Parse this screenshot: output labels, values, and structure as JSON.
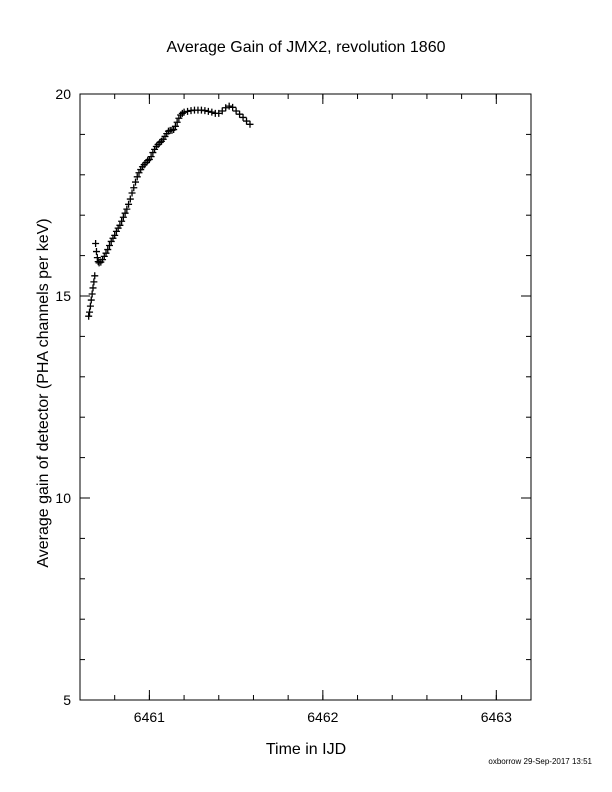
{
  "chart_data": {
    "type": "scatter",
    "title": "Average Gain of JMX2, revolution 1860",
    "xlabel": "Time in IJD",
    "ylabel": "Average gain of detector (PHA channels per keV)",
    "xlim": [
      6460.6,
      6463.2
    ],
    "ylim": [
      5,
      20
    ],
    "x_ticks": [
      6461,
      6462,
      6463
    ],
    "y_ticks": [
      5,
      10,
      15,
      20
    ],
    "x_tick_labels": [
      "6461",
      "6462",
      "6463"
    ],
    "y_tick_labels": [
      "5",
      "10",
      "15",
      "20"
    ],
    "x_minor_step": 0.2,
    "y_minor_step": 1,
    "marker": "+",
    "grid": false,
    "series": [
      {
        "color": "#000000",
        "points": [
          [
            6460.65,
            14.5
          ],
          [
            6460.655,
            14.6
          ],
          [
            6460.66,
            14.75
          ],
          [
            6460.665,
            14.9
          ],
          [
            6460.67,
            15.05
          ],
          [
            6460.675,
            15.2
          ],
          [
            6460.68,
            15.35
          ],
          [
            6460.685,
            15.5
          ],
          [
            6460.69,
            16.3
          ],
          [
            6460.695,
            16.1
          ],
          [
            6460.7,
            15.95
          ],
          [
            6460.705,
            15.85
          ],
          [
            6460.71,
            15.82
          ],
          [
            6460.72,
            15.84
          ],
          [
            6460.73,
            15.9
          ],
          [
            6460.74,
            15.98
          ],
          [
            6460.75,
            16.06
          ],
          [
            6460.76,
            16.15
          ],
          [
            6460.77,
            16.25
          ],
          [
            6460.78,
            16.35
          ],
          [
            6460.79,
            16.43
          ],
          [
            6460.8,
            16.5
          ],
          [
            6460.81,
            16.6
          ],
          [
            6460.82,
            16.68
          ],
          [
            6460.83,
            16.75
          ],
          [
            6460.84,
            16.85
          ],
          [
            6460.85,
            16.95
          ],
          [
            6460.86,
            17.05
          ],
          [
            6460.87,
            17.15
          ],
          [
            6460.88,
            17.27
          ],
          [
            6460.89,
            17.4
          ],
          [
            6460.9,
            17.55
          ],
          [
            6460.91,
            17.68
          ],
          [
            6460.92,
            17.82
          ],
          [
            6460.93,
            17.95
          ],
          [
            6460.94,
            18.05
          ],
          [
            6460.95,
            18.13
          ],
          [
            6460.96,
            18.2
          ],
          [
            6460.97,
            18.25
          ],
          [
            6460.98,
            18.3
          ],
          [
            6460.99,
            18.35
          ],
          [
            6461.0,
            18.38
          ],
          [
            6461.01,
            18.45
          ],
          [
            6461.02,
            18.55
          ],
          [
            6461.03,
            18.63
          ],
          [
            6461.04,
            18.7
          ],
          [
            6461.05,
            18.75
          ],
          [
            6461.06,
            18.8
          ],
          [
            6461.07,
            18.83
          ],
          [
            6461.08,
            18.88
          ],
          [
            6461.09,
            18.95
          ],
          [
            6461.1,
            19.02
          ],
          [
            6461.11,
            19.08
          ],
          [
            6461.12,
            19.1
          ],
          [
            6461.13,
            19.1
          ],
          [
            6461.14,
            19.12
          ],
          [
            6461.15,
            19.2
          ],
          [
            6461.16,
            19.3
          ],
          [
            6461.17,
            19.4
          ],
          [
            6461.18,
            19.48
          ],
          [
            6461.19,
            19.52
          ],
          [
            6461.2,
            19.55
          ],
          [
            6461.22,
            19.57
          ],
          [
            6461.24,
            19.59
          ],
          [
            6461.26,
            19.6
          ],
          [
            6461.28,
            19.6
          ],
          [
            6461.3,
            19.6
          ],
          [
            6461.32,
            19.59
          ],
          [
            6461.34,
            19.57
          ],
          [
            6461.36,
            19.55
          ],
          [
            6461.38,
            19.52
          ],
          [
            6461.4,
            19.52
          ],
          [
            6461.42,
            19.58
          ],
          [
            6461.44,
            19.66
          ],
          [
            6461.46,
            19.7
          ],
          [
            6461.48,
            19.67
          ],
          [
            6461.5,
            19.58
          ],
          [
            6461.52,
            19.5
          ],
          [
            6461.54,
            19.42
          ],
          [
            6461.56,
            19.33
          ],
          [
            6461.58,
            19.25
          ]
        ]
      }
    ]
  },
  "footer": "oxborrow 29-Sep-2017 13:51"
}
